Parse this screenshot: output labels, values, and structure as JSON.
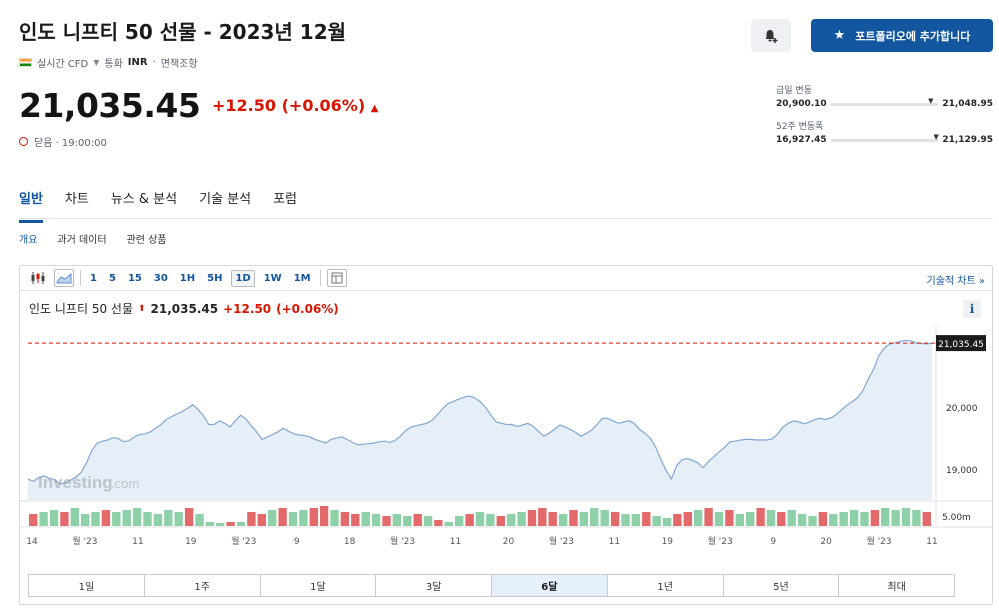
{
  "header": {
    "title": "인도 니프티 50 선물 - 2023년 12월",
    "realtime_label": "실시간 CFD",
    "currency_label": "통화",
    "currency": "INR",
    "disclaimer": "면책조항",
    "price": "21,035.45",
    "change": "+12.50",
    "change_pct": "(+0.06%)",
    "status": "닫음 · 19:00:00",
    "portfolio_button": "포트폴리오에 추가합니다"
  },
  "ranges": {
    "day_label": "금일 변동",
    "day_low": "20,900.10",
    "day_high": "21,048.95",
    "day_pos": 0.93,
    "week52_label": "52주 변동폭",
    "week52_low": "16,927.45",
    "week52_high": "21,129.95",
    "week52_pos": 0.98
  },
  "tabs": [
    {
      "label": "일반",
      "active": true
    },
    {
      "label": "차트",
      "active": false
    },
    {
      "label": "뉴스 & 분석",
      "active": false
    },
    {
      "label": "기술 분석",
      "active": false
    },
    {
      "label": "포럼",
      "active": false
    }
  ],
  "subtabs": [
    {
      "label": "개요",
      "active": true
    },
    {
      "label": "과거 데이터",
      "active": false
    },
    {
      "label": "관련 상품",
      "active": false
    }
  ],
  "toolbar": {
    "intervals": [
      "1",
      "5",
      "15",
      "30",
      "1H",
      "5H",
      "1D",
      "1W",
      "1M"
    ],
    "active_interval": "1D",
    "tech_chart_link": "기술적 차트 »"
  },
  "chart_head": {
    "name": "인도 니프티 50 선물",
    "price": "21,035.45",
    "change": "+12.50",
    "change_pct": "(+0.06%)",
    "info": "i"
  },
  "watermark": "Investing",
  "watermark_suffix": ".com",
  "colors": {
    "accent": "#1256a0",
    "down_red": "#d91400",
    "line": "#7fa8d6",
    "area": "#e6eff8",
    "vol_up": "#8ed1a8",
    "vol_down": "#e36a6a"
  },
  "chart_data": {
    "type": "area",
    "y_tick_labels": [
      "20,000",
      "19,000"
    ],
    "y_ticks": [
      20000,
      19000
    ],
    "ylim": [
      18500,
      21150
    ],
    "current_label": "21,035.45",
    "current_value": 21035.45,
    "volume_label": "5.00m",
    "x_tick_labels": [
      "14",
      "월 '23",
      "11",
      "19",
      "월 '23",
      "9",
      "18",
      "월 '23",
      "11",
      "20",
      "월 '23",
      "11",
      "19",
      "월 '23",
      "9",
      "20",
      "월 '23",
      "11"
    ],
    "values": [
      18840,
      18800,
      18860,
      18890,
      18850,
      18830,
      18760,
      18780,
      18820,
      18870,
      18950,
      19100,
      19300,
      19420,
      19450,
      19470,
      19510,
      19490,
      19440,
      19460,
      19520,
      19560,
      19570,
      19600,
      19660,
      19720,
      19800,
      19850,
      19890,
      19930,
      19980,
      20040,
      19960,
      19860,
      19720,
      19720,
      19780,
      19740,
      19680,
      19780,
      19870,
      19810,
      19700,
      19600,
      19480,
      19520,
      19560,
      19600,
      19660,
      19610,
      19570,
      19550,
      19540,
      19520,
      19480,
      19450,
      19420,
      19480,
      19500,
      19520,
      19480,
      19430,
      19390,
      19400,
      19410,
      19420,
      19440,
      19450,
      19430,
      19460,
      19530,
      19620,
      19680,
      19700,
      19720,
      19740,
      19790,
      19880,
      19980,
      20060,
      20090,
      20130,
      20160,
      20180,
      20150,
      20090,
      20000,
      19880,
      19760,
      19740,
      19720,
      19720,
      19690,
      19710,
      19740,
      19690,
      19610,
      19530,
      19580,
      19640,
      19710,
      19680,
      19640,
      19590,
      19530,
      19580,
      19630,
      19720,
      19820,
      19820,
      19780,
      19740,
      19760,
      19780,
      19740,
      19640,
      19580,
      19500,
      19360,
      19160,
      18980,
      18840,
      19060,
      19150,
      19170,
      19140,
      19100,
      19020,
      19130,
      19200,
      19280,
      19350,
      19440,
      19450,
      19470,
      19480,
      19480,
      19470,
      19470,
      19470,
      19490,
      19570,
      19680,
      19740,
      19780,
      19760,
      19730,
      19760,
      19800,
      19820,
      19800,
      19830,
      19880,
      19960,
      20030,
      20090,
      20150,
      20270,
      20450,
      20610,
      20830,
      20950,
      21020,
      21040,
      21060,
      21080,
      21070,
      21040,
      21030,
      21020,
      21035
    ],
    "volumes": [
      [
        0.6,
        1
      ],
      [
        0.7,
        0
      ],
      [
        0.8,
        0
      ],
      [
        0.7,
        1
      ],
      [
        0.9,
        0
      ],
      [
        0.6,
        0
      ],
      [
        0.7,
        0
      ],
      [
        0.8,
        1
      ],
      [
        0.7,
        0
      ],
      [
        0.8,
        0
      ],
      [
        0.9,
        0
      ],
      [
        0.7,
        0
      ],
      [
        0.6,
        0
      ],
      [
        0.8,
        0
      ],
      [
        0.7,
        0
      ],
      [
        0.9,
        1
      ],
      [
        0.6,
        0
      ],
      [
        0.2,
        0
      ],
      [
        0.15,
        0
      ],
      [
        0.2,
        1
      ],
      [
        0.2,
        0
      ],
      [
        0.7,
        1
      ],
      [
        0.6,
        1
      ],
      [
        0.8,
        0
      ],
      [
        0.9,
        1
      ],
      [
        0.7,
        0
      ],
      [
        0.8,
        0
      ],
      [
        0.9,
        1
      ],
      [
        1.0,
        1
      ],
      [
        0.8,
        0
      ],
      [
        0.7,
        1
      ],
      [
        0.6,
        1
      ],
      [
        0.7,
        0
      ],
      [
        0.6,
        0
      ],
      [
        0.5,
        1
      ],
      [
        0.6,
        0
      ],
      [
        0.5,
        0
      ],
      [
        0.6,
        1
      ],
      [
        0.5,
        0
      ],
      [
        0.3,
        1
      ],
      [
        0.2,
        0
      ],
      [
        0.5,
        0
      ],
      [
        0.6,
        1
      ],
      [
        0.7,
        0
      ],
      [
        0.6,
        0
      ],
      [
        0.5,
        1
      ],
      [
        0.6,
        0
      ],
      [
        0.7,
        0
      ],
      [
        0.8,
        1
      ],
      [
        0.9,
        1
      ],
      [
        0.7,
        1
      ],
      [
        0.6,
        0
      ],
      [
        0.8,
        1
      ],
      [
        0.7,
        0
      ],
      [
        0.9,
        0
      ],
      [
        0.8,
        0
      ],
      [
        0.7,
        1
      ],
      [
        0.6,
        0
      ],
      [
        0.6,
        0
      ],
      [
        0.7,
        1
      ],
      [
        0.5,
        0
      ],
      [
        0.4,
        0
      ],
      [
        0.6,
        1
      ],
      [
        0.7,
        1
      ],
      [
        0.8,
        0
      ],
      [
        0.9,
        1
      ],
      [
        0.7,
        0
      ],
      [
        0.8,
        1
      ],
      [
        0.6,
        0
      ],
      [
        0.7,
        0
      ],
      [
        0.9,
        1
      ],
      [
        0.8,
        0
      ],
      [
        0.7,
        1
      ],
      [
        0.8,
        0
      ],
      [
        0.6,
        0
      ],
      [
        0.5,
        0
      ],
      [
        0.7,
        1
      ],
      [
        0.6,
        0
      ],
      [
        0.7,
        0
      ],
      [
        0.8,
        0
      ],
      [
        0.7,
        0
      ],
      [
        0.8,
        1
      ],
      [
        0.9,
        0
      ],
      [
        0.8,
        0
      ],
      [
        0.9,
        0
      ],
      [
        0.8,
        0
      ],
      [
        0.7,
        1
      ]
    ]
  },
  "range_buttons": [
    {
      "label": "1일",
      "active": false
    },
    {
      "label": "1주",
      "active": false
    },
    {
      "label": "1달",
      "active": false
    },
    {
      "label": "3달",
      "active": false
    },
    {
      "label": "6달",
      "active": true
    },
    {
      "label": "1년",
      "active": false
    },
    {
      "label": "5년",
      "active": false
    },
    {
      "label": "최대",
      "active": false
    }
  ]
}
